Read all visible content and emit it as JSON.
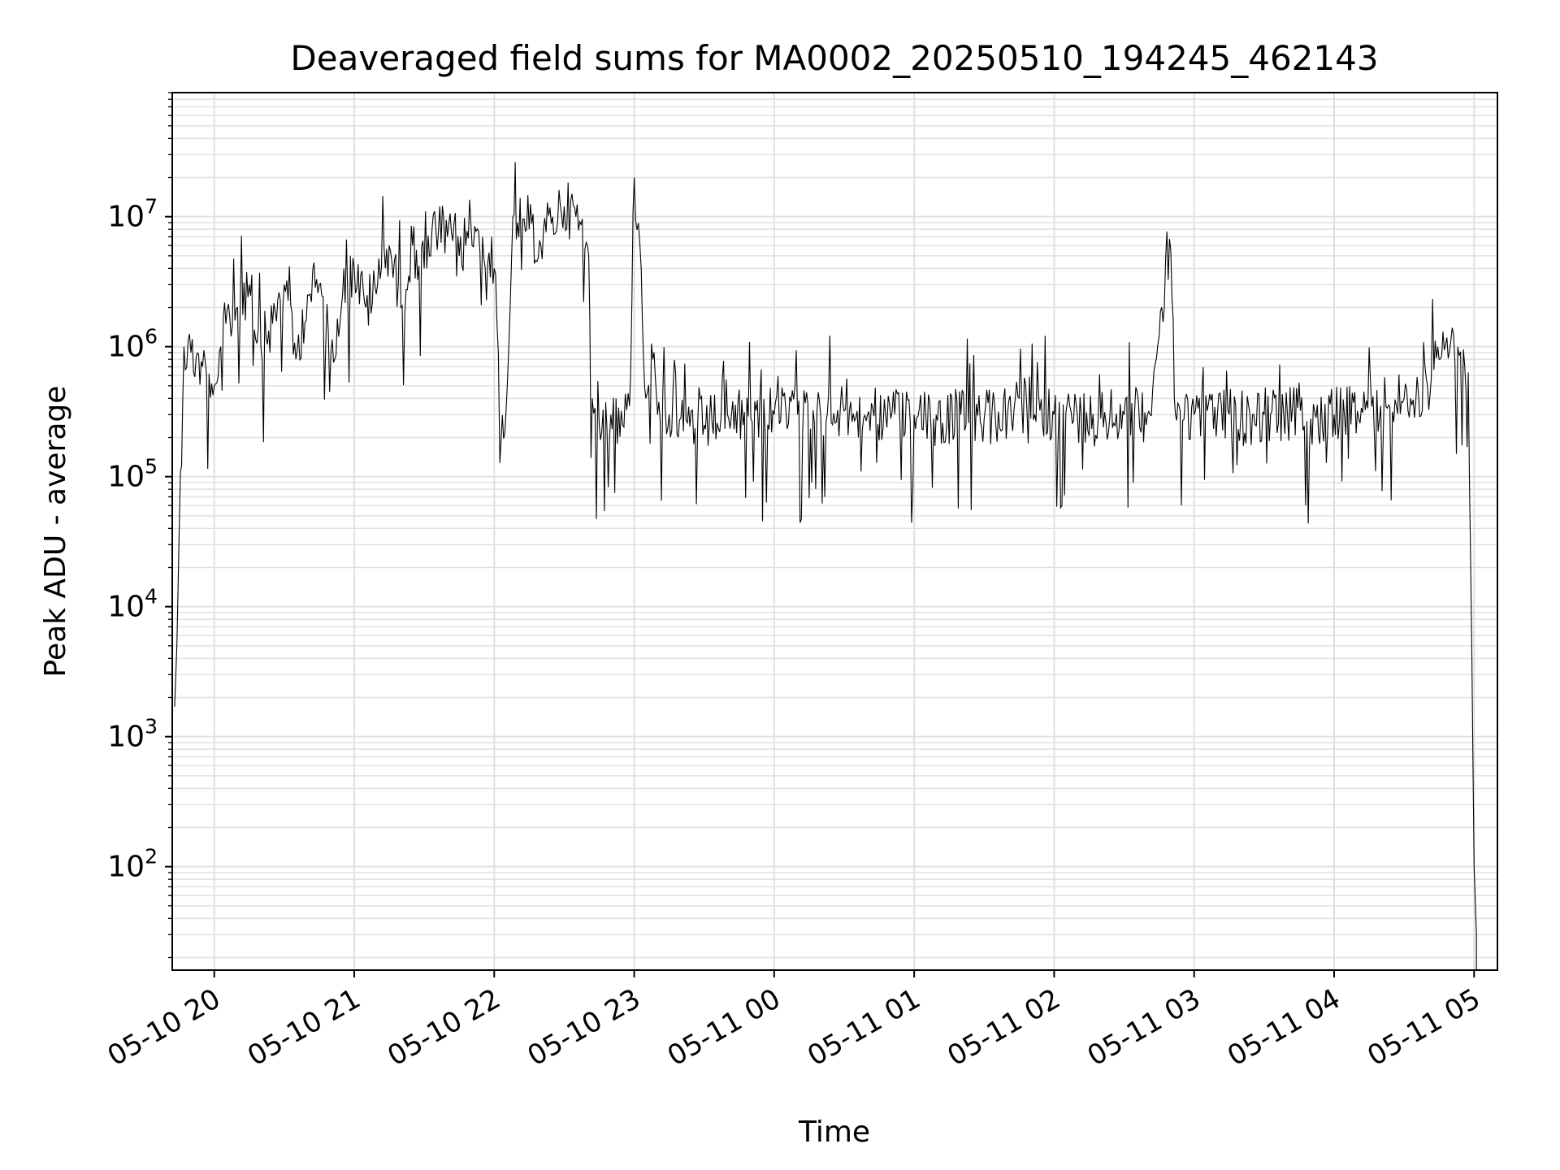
{
  "chart_data": {
    "type": "line",
    "title": "Deaveraged field sums for MA0002_20250510_194245_462143",
    "xlabel": "Time",
    "ylabel": "Peak ADU - average",
    "yscale": "log",
    "grid": true,
    "legend": "none",
    "line_color": "#000000",
    "grid_color": "#e0e0e0",
    "xlim": [
      "2025-05-10T19:42",
      "2025-05-11T05:10"
    ],
    "ylim": [
      16,
      90000000
    ],
    "x_ticks": [
      {
        "time": "2025-05-10T20:00",
        "label": "05-10 20"
      },
      {
        "time": "2025-05-10T21:00",
        "label": "05-10 21"
      },
      {
        "time": "2025-05-10T22:00",
        "label": "05-10 22"
      },
      {
        "time": "2025-05-10T23:00",
        "label": "05-10 23"
      },
      {
        "time": "2025-05-11T00:00",
        "label": "05-11 00"
      },
      {
        "time": "2025-05-11T01:00",
        "label": "05-11 01"
      },
      {
        "time": "2025-05-11T02:00",
        "label": "05-11 02"
      },
      {
        "time": "2025-05-11T03:00",
        "label": "05-11 03"
      },
      {
        "time": "2025-05-11T04:00",
        "label": "05-11 04"
      },
      {
        "time": "2025-05-11T05:00",
        "label": "05-11 05"
      }
    ],
    "y_ticks": [
      {
        "value": 100,
        "base": "10",
        "exp": "2"
      },
      {
        "value": 1000,
        "base": "10",
        "exp": "3"
      },
      {
        "value": 10000,
        "base": "10",
        "exp": "4"
      },
      {
        "value": 100000,
        "base": "10",
        "exp": "5"
      },
      {
        "value": 1000000,
        "base": "10",
        "exp": "6"
      },
      {
        "value": 10000000,
        "base": "10",
        "exp": "7"
      }
    ],
    "series": [
      {
        "x": [
          "2025-05-10T19:43",
          "2025-05-10T19:44",
          "2025-05-10T19:45",
          "2025-05-10T19:47",
          "2025-05-10T19:50",
          "2025-05-10T19:55",
          "2025-05-10T20:00",
          "2025-05-10T20:05",
          "2025-05-10T20:10",
          "2025-05-10T20:15",
          "2025-05-10T20:20",
          "2025-05-10T20:25",
          "2025-05-10T20:30",
          "2025-05-10T20:35",
          "2025-05-10T20:40",
          "2025-05-10T20:45",
          "2025-05-10T20:50",
          "2025-05-10T20:55",
          "2025-05-10T21:00",
          "2025-05-10T21:05",
          "2025-05-10T21:10",
          "2025-05-10T21:15",
          "2025-05-10T21:20",
          "2025-05-10T21:25",
          "2025-05-10T21:30",
          "2025-05-10T21:35",
          "2025-05-10T21:40",
          "2025-05-10T21:45",
          "2025-05-10T21:50",
          "2025-05-10T21:55",
          "2025-05-10T22:00",
          "2025-05-10T22:03",
          "2025-05-10T22:05",
          "2025-05-10T22:08",
          "2025-05-10T22:10",
          "2025-05-10T22:15",
          "2025-05-10T22:20",
          "2025-05-10T22:25",
          "2025-05-10T22:30",
          "2025-05-10T22:35",
          "2025-05-10T22:40",
          "2025-05-10T22:42",
          "2025-05-10T22:45",
          "2025-05-10T22:50",
          "2025-05-10T22:55",
          "2025-05-10T22:58",
          "2025-05-10T23:00",
          "2025-05-10T23:03",
          "2025-05-10T23:05",
          "2025-05-10T23:08",
          "2025-05-10T23:10",
          "2025-05-10T23:15",
          "2025-05-10T23:20",
          "2025-05-10T23:30",
          "2025-05-10T23:40",
          "2025-05-10T23:50",
          "2025-05-11T00:00",
          "2025-05-11T00:10",
          "2025-05-11T00:20",
          "2025-05-11T00:30",
          "2025-05-11T00:40",
          "2025-05-11T00:50",
          "2025-05-11T01:00",
          "2025-05-11T01:10",
          "2025-05-11T01:20",
          "2025-05-11T01:30",
          "2025-05-11T01:40",
          "2025-05-11T01:50",
          "2025-05-11T02:00",
          "2025-05-11T02:10",
          "2025-05-11T02:20",
          "2025-05-11T02:30",
          "2025-05-11T02:40",
          "2025-05-11T02:50",
          "2025-05-11T02:52",
          "2025-05-11T02:54",
          "2025-05-11T03:00",
          "2025-05-11T03:10",
          "2025-05-11T03:20",
          "2025-05-11T03:30",
          "2025-05-11T03:40",
          "2025-05-11T03:50",
          "2025-05-11T04:00",
          "2025-05-11T04:10",
          "2025-05-11T04:20",
          "2025-05-11T04:30",
          "2025-05-11T04:35",
          "2025-05-11T04:40",
          "2025-05-11T04:45",
          "2025-05-11T04:50",
          "2025-05-11T04:53",
          "2025-05-11T04:56",
          "2025-05-11T04:58",
          "2025-05-11T04:59",
          "2025-05-11T05:00",
          "2025-05-11T05:01"
        ],
        "y": [
          1700,
          5000,
          40000,
          1000000,
          900000,
          700000,
          500000,
          1500000,
          2000000,
          3000000,
          1000000,
          1500000,
          3000000,
          800000,
          2500000,
          3000000,
          900000,
          2500000,
          4000000,
          2000000,
          3000000,
          6000000,
          2000000,
          6000000,
          4000000,
          8000000,
          7000000,
          5000000,
          9000000,
          7000000,
          4000000,
          200000,
          300000,
          10000000,
          9000000,
          8000000,
          6000000,
          10000000,
          12000000,
          10000000,
          6000000,
          400000,
          250000,
          300000,
          250000,
          350000,
          20000000,
          4000000,
          400000,
          800000,
          300000,
          300000,
          280000,
          250000,
          300000,
          280000,
          300000,
          300000,
          280000,
          320000,
          300000,
          280000,
          300000,
          270000,
          300000,
          280000,
          300000,
          280000,
          300000,
          290000,
          280000,
          300000,
          300000,
          5500000,
          300000,
          320000,
          300000,
          300000,
          280000,
          300000,
          300000,
          280000,
          300000,
          320000,
          350000,
          400000,
          380000,
          500000,
          800000,
          1100000,
          1000000,
          700000,
          100000,
          5000,
          100,
          30
        ]
      }
    ]
  }
}
